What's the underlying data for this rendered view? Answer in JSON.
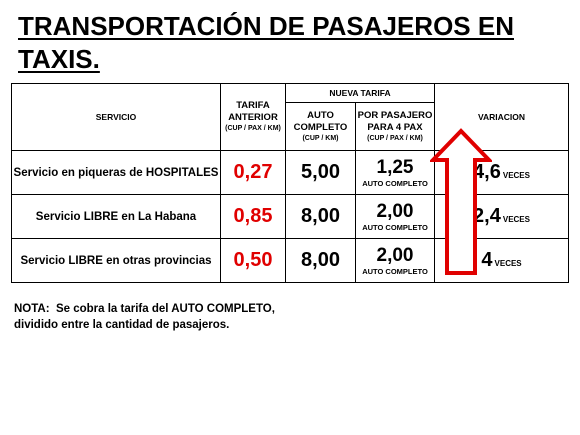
{
  "title": {
    "line1": "TRANSPORTACIÓN DE PASAJEROS EN",
    "line2": "TAXIS."
  },
  "table": {
    "headers": {
      "servicio": "SERVICIO",
      "tarifa_anterior": "TARIFA ANTERIOR",
      "tarifa_anterior_unit": "(CUP / PAX / KM)",
      "nueva_tarifa": "NUEVA TARIFA",
      "auto_completo": "AUTO COMPLETO",
      "auto_completo_unit": "(CUP / KM)",
      "por_pasajero": "POR PASAJERO PARA 4 PAX",
      "por_pasajero_unit": "(CUP / PAX / KM)",
      "variacion": "VARIACION"
    },
    "rows": [
      {
        "servicio": "Servicio en piqueras de HOSPITALES",
        "tarifa_anterior": "0,27",
        "auto_completo": "5,00",
        "por_pasajero": "1,25",
        "por_pasajero_note": "AUTO COMPLETO",
        "variacion": "4,6",
        "variacion_unit": "VECES"
      },
      {
        "servicio": "Servicio LIBRE en La Habana",
        "tarifa_anterior": "0,85",
        "auto_completo": "8,00",
        "por_pasajero": "2,00",
        "por_pasajero_note": "AUTO COMPLETO",
        "variacion": "2,4",
        "variacion_unit": "VECES"
      },
      {
        "servicio": "Servicio LIBRE en otras provincias",
        "tarifa_anterior": "0,50",
        "auto_completo": "8,00",
        "por_pasajero": "2,00",
        "por_pasajero_note": "AUTO COMPLETO",
        "variacion": "4",
        "variacion_unit": "VECES"
      }
    ]
  },
  "note": {
    "line1": "NOTA:  Se cobra la tarifa del AUTO COMPLETO,",
    "line2": "dividido entre la cantidad de pasajeros."
  },
  "colors": {
    "accent": "#e00000",
    "arrow": "#e00000"
  },
  "icons": {
    "arrow": "up-arrow-icon"
  }
}
